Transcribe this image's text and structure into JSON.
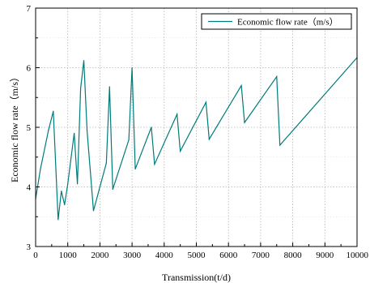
{
  "chart_data": {
    "type": "line",
    "title": "",
    "xlabel": "Transmission(t/d)",
    "ylabel": "Economic flow rate（m/s）",
    "xlim": [
      0,
      10000
    ],
    "ylim": [
      3,
      7
    ],
    "xticks": [
      0,
      1000,
      2000,
      3000,
      4000,
      5000,
      6000,
      7000,
      8000,
      9000,
      10000
    ],
    "yticks": [
      3,
      4,
      5,
      6,
      7
    ],
    "x_tick_labels": [
      "0",
      "1000",
      "2000",
      "3000",
      "4000",
      "5000",
      "6000",
      "7000",
      "8000",
      "9000",
      "10000"
    ],
    "y_tick_labels": [
      "3",
      "4",
      "5",
      "6",
      "7"
    ],
    "grid": true,
    "legend_position": "top-right",
    "series": [
      {
        "name": "Economic flow rate（m/s）",
        "color": "#007b7b",
        "x": [
          0,
          150,
          400,
          550,
          700,
          800,
          900,
          1000,
          1200,
          1300,
          1400,
          1500,
          1600,
          1800,
          2200,
          2300,
          2400,
          2900,
          3000,
          3100,
          3600,
          3700,
          4400,
          4500,
          5300,
          5400,
          6400,
          6500,
          7500,
          7600,
          10000
        ],
        "y": [
          3.8,
          4.3,
          4.95,
          5.27,
          3.45,
          3.93,
          3.7,
          4.05,
          4.9,
          4.05,
          5.65,
          6.12,
          4.95,
          3.6,
          4.4,
          5.68,
          3.96,
          4.79,
          6.0,
          4.3,
          5.0,
          4.38,
          5.22,
          4.6,
          5.42,
          4.8,
          5.7,
          5.08,
          5.85,
          4.7,
          6.17
        ]
      }
    ]
  }
}
